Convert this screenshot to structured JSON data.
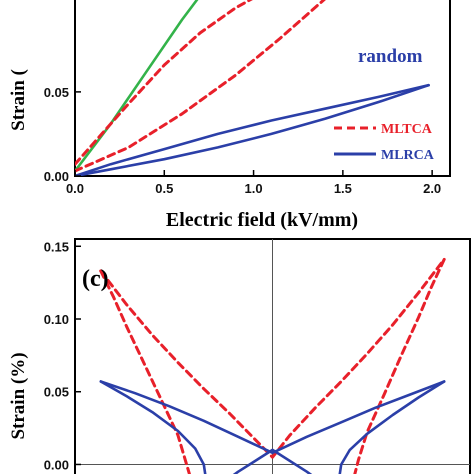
{
  "chart_data": [
    {
      "type": "line",
      "panel": "upper",
      "xlabel": "Electric field (kV/mm)",
      "ylabel": "Strain (",
      "panel_label": "",
      "xlim": [
        0.0,
        2.1
      ],
      "ylim": [
        0.0,
        0.107
      ],
      "xticks": [
        "0.0",
        "0.5",
        "1.0",
        "1.5",
        "2.0"
      ],
      "xtick_values": [
        0.0,
        0.5,
        1.0,
        1.5,
        2.0
      ],
      "yticks": [
        "0.00",
        "0.05"
      ],
      "ytick_values": [
        0.0,
        0.05
      ],
      "annotation": "random",
      "legend": [
        {
          "name": "MLTCA",
          "style": "dashed",
          "color": "#e8202a"
        },
        {
          "name": "MLRCA",
          "style": "solid",
          "color": "#2b3fa8"
        }
      ],
      "series": [
        {
          "name": "",
          "color": "#33b34a",
          "style": "solid",
          "x": [
            0.0,
            0.2,
            0.4,
            0.6,
            0.72
          ],
          "y": [
            0.003,
            0.031,
            0.062,
            0.093,
            0.11
          ]
        },
        {
          "name": "MLTCA",
          "color": "#e8202a",
          "style": "dashed",
          "x": [
            0.0,
            0.15,
            0.3,
            0.5,
            0.7,
            0.9,
            1.07
          ],
          "y": [
            0.007,
            0.025,
            0.043,
            0.066,
            0.085,
            0.1,
            0.11
          ]
        },
        {
          "name": "MLTCA",
          "color": "#e8202a",
          "style": "dashed",
          "x": [
            0.0,
            0.3,
            0.6,
            0.9,
            1.15,
            1.45
          ],
          "y": [
            0.003,
            0.017,
            0.037,
            0.06,
            0.082,
            0.11
          ]
        },
        {
          "name": "MLRCA",
          "color": "#2b3fa8",
          "style": "solid",
          "x": [
            0.0,
            0.2,
            0.5,
            0.8,
            1.1,
            1.4,
            1.7,
            1.9,
            1.98
          ],
          "y": [
            0.0,
            0.007,
            0.016,
            0.025,
            0.033,
            0.04,
            0.047,
            0.052,
            0.054
          ]
        },
        {
          "name": "MLRCA",
          "color": "#2b3fa8",
          "style": "solid",
          "x": [
            1.98,
            1.7,
            1.4,
            1.1,
            0.8,
            0.5,
            0.2,
            0.0
          ],
          "y": [
            0.054,
            0.044,
            0.034,
            0.025,
            0.017,
            0.01,
            0.004,
            0.0
          ]
        }
      ]
    },
    {
      "type": "line",
      "panel": "lower",
      "xlabel": "",
      "ylabel": "Strain (%)",
      "panel_label": "(c)",
      "xlim": [
        -2.3,
        2.3
      ],
      "ylim": [
        -0.01,
        0.155
      ],
      "yticks": [
        "0.00",
        "0.05",
        "0.10",
        "0.15"
      ],
      "ytick_values": [
        0.0,
        0.05,
        0.1,
        0.15
      ],
      "series": [
        {
          "name": "MLTCA",
          "color": "#e8202a",
          "style": "dashed",
          "x": [
            -2.0,
            -1.7,
            -1.4,
            -1.1,
            -0.8,
            -0.5,
            -0.2,
            0.0,
            0.2,
            0.5,
            0.8,
            1.1,
            1.4,
            1.7,
            2.0
          ],
          "y": [
            0.133,
            0.11,
            0.089,
            0.07,
            0.052,
            0.035,
            0.017,
            0.005,
            0.02,
            0.039,
            0.057,
            0.076,
            0.096,
            0.118,
            0.141
          ]
        },
        {
          "name": "MLTCA",
          "color": "#e8202a",
          "style": "dashed",
          "x": [
            -2.0,
            -1.85,
            -1.7,
            -1.5,
            -1.3,
            -1.1,
            -1.0,
            -0.9
          ],
          "y": [
            0.133,
            0.115,
            0.095,
            0.07,
            0.045,
            0.02,
            0.0,
            -0.02
          ]
        },
        {
          "name": "MLTCA",
          "color": "#e8202a",
          "style": "dashed",
          "x": [
            2.0,
            1.85,
            1.7,
            1.5,
            1.3,
            1.1,
            1.0,
            0.9
          ],
          "y": [
            0.141,
            0.122,
            0.101,
            0.075,
            0.048,
            0.022,
            0.003,
            -0.02
          ]
        },
        {
          "name": "MLRCA",
          "color": "#2b3fa8",
          "style": "solid",
          "x": [
            -2.0,
            -1.6,
            -1.2,
            -0.8,
            -0.4,
            0.0,
            0.4,
            0.8,
            1.2,
            1.6,
            2.0
          ],
          "y": [
            0.057,
            0.049,
            0.04,
            0.03,
            0.019,
            0.008,
            0.019,
            0.029,
            0.039,
            0.048,
            0.057
          ]
        },
        {
          "name": "MLRCA",
          "color": "#2b3fa8",
          "style": "solid",
          "x": [
            -2.0,
            -1.7,
            -1.4,
            -1.1,
            -0.9,
            -0.8,
            -0.75
          ],
          "y": [
            0.057,
            0.047,
            0.036,
            0.023,
            0.011,
            0.0,
            -0.02
          ]
        },
        {
          "name": "MLRCA",
          "color": "#2b3fa8",
          "style": "solid",
          "x": [
            2.0,
            1.7,
            1.4,
            1.1,
            0.9,
            0.8,
            0.75
          ],
          "y": [
            0.057,
            0.046,
            0.034,
            0.021,
            0.01,
            0.0,
            -0.02
          ]
        },
        {
          "name": "MLRCA",
          "color": "#2b3fa8",
          "style": "solid",
          "x": [
            -0.75,
            -0.4,
            0.0,
            0.4,
            0.75
          ],
          "y": [
            -0.02,
            -0.005,
            0.01,
            -0.005,
            -0.02
          ]
        }
      ]
    }
  ]
}
